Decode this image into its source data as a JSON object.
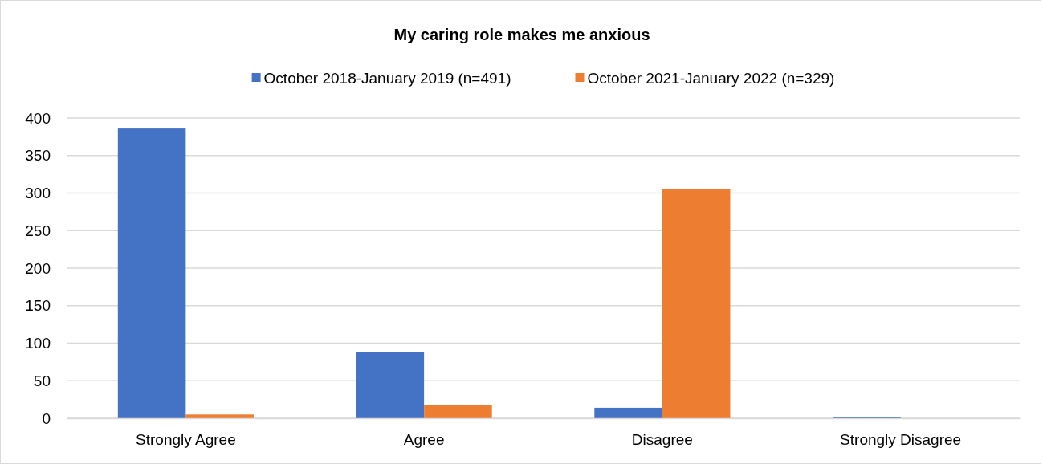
{
  "chart_data": {
    "type": "bar",
    "title": "My caring role makes me anxious",
    "categories": [
      "Strongly Agree",
      "Agree",
      "Disagree",
      "Strongly Disagree"
    ],
    "series": [
      {
        "name": "October 2018-January 2019 (n=491)",
        "color": "#4472c4",
        "values": [
          386,
          88,
          14,
          1
        ]
      },
      {
        "name": "October 2021-January 2022 (n=329)",
        "color": "#ed7d31",
        "values": [
          5,
          18,
          305,
          0
        ]
      }
    ],
    "ylim": [
      0,
      400
    ],
    "yticks": [
      0,
      50,
      100,
      150,
      200,
      250,
      300,
      350,
      400
    ],
    "grid": "y",
    "legend": "top"
  }
}
